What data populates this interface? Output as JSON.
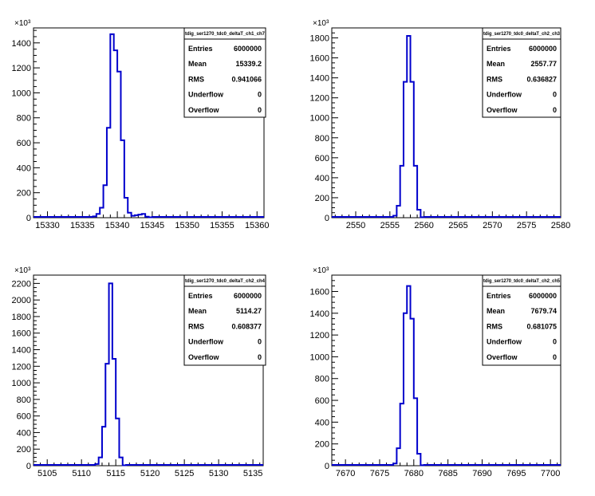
{
  "colors": {
    "histogram": "#0000cc",
    "axis": "#000000",
    "background": "#ffffff"
  },
  "chart_data": [
    {
      "type": "bar",
      "histogram_style": "step",
      "title": "tdig_ser1270_tdc0_deltaT_ch1_ch7",
      "xlim": [
        15328,
        15361
      ],
      "ylim": [
        0,
        1520
      ],
      "y_exponent_label": "×10³",
      "x_ticks": [
        15330,
        15335,
        15340,
        15345,
        15350,
        15355,
        15360
      ],
      "y_ticks": [
        0,
        200,
        400,
        600,
        800,
        1000,
        1200,
        1400
      ],
      "bin_width": 0.5,
      "bins_x": [
        15336.5,
        15337,
        15337.5,
        15338,
        15338.5,
        15339,
        15339.5,
        15340,
        15340.5,
        15341,
        15341.5,
        15342,
        15342.5,
        15343,
        15343.5,
        15344,
        15344.5
      ],
      "bins_y": [
        10,
        30,
        80,
        260,
        720,
        1470,
        1340,
        1170,
        620,
        160,
        40,
        15,
        20,
        25,
        30,
        8,
        3
      ],
      "stats": [
        {
          "label": "Entries",
          "value": "6000000"
        },
        {
          "label": "Mean",
          "value": "15339.2"
        },
        {
          "label": "RMS",
          "value": "0.941066"
        },
        {
          "label": "Underflow",
          "value": "0"
        },
        {
          "label": "Overflow",
          "value": "0"
        }
      ]
    },
    {
      "type": "bar",
      "histogram_style": "step",
      "title": "tdig_ser1270_tdc0_deltaT_ch2_ch3",
      "xlim": [
        2546.5,
        2580
      ],
      "ylim": [
        0,
        1900
      ],
      "y_exponent_label": "×10³",
      "x_ticks": [
        2550,
        2555,
        2560,
        2565,
        2570,
        2575,
        2580
      ],
      "y_ticks": [
        0,
        200,
        400,
        600,
        800,
        1000,
        1200,
        1400,
        1600,
        1800
      ],
      "bin_width": 0.5,
      "bins_x": [
        2555.5,
        2556,
        2556.5,
        2557,
        2557.5,
        2558,
        2558.5,
        2559,
        2559.5
      ],
      "bins_y": [
        20,
        120,
        520,
        1360,
        1820,
        1360,
        520,
        80,
        5
      ],
      "stats": [
        {
          "label": "Entries",
          "value": "6000000"
        },
        {
          "label": "Mean",
          "value": "2557.77"
        },
        {
          "label": "RMS",
          "value": "0.636827"
        },
        {
          "label": "Underflow",
          "value": "0"
        },
        {
          "label": "Overflow",
          "value": "0"
        }
      ]
    },
    {
      "type": "bar",
      "histogram_style": "step",
      "title": "tdig_ser1270_tdc0_deltaT_ch2_ch4",
      "xlim": [
        5103,
        5136.5
      ],
      "ylim": [
        0,
        2300
      ],
      "y_exponent_label": "×10³",
      "x_ticks": [
        5105,
        5110,
        5115,
        5120,
        5125,
        5130,
        5135
      ],
      "y_ticks": [
        0,
        200,
        400,
        600,
        800,
        1000,
        1200,
        1400,
        1600,
        1800,
        2000,
        2200
      ],
      "bin_width": 0.5,
      "bins_x": [
        5112,
        5112.5,
        5113,
        5113.5,
        5114,
        5114.5,
        5115,
        5115.5,
        5116
      ],
      "bins_y": [
        20,
        100,
        470,
        1230,
        2200,
        1290,
        570,
        100,
        5
      ],
      "stats": [
        {
          "label": "Entries",
          "value": "6000000"
        },
        {
          "label": "Mean",
          "value": "5114.27"
        },
        {
          "label": "RMS",
          "value": "0.608377"
        },
        {
          "label": "Underflow",
          "value": "0"
        },
        {
          "label": "Overflow",
          "value": "0"
        }
      ]
    },
    {
      "type": "bar",
      "histogram_style": "step",
      "title": "tdig_ser1270_tdc0_deltaT_ch2_ch5",
      "xlim": [
        7668,
        7701.5
      ],
      "ylim": [
        0,
        1750
      ],
      "y_exponent_label": "×10³",
      "x_ticks": [
        7670,
        7675,
        7680,
        7685,
        7690,
        7695,
        7700
      ],
      "y_ticks": [
        0,
        200,
        400,
        600,
        800,
        1000,
        1200,
        1400,
        1600
      ],
      "bin_width": 0.5,
      "bins_x": [
        7677,
        7677.5,
        7678,
        7678.5,
        7679,
        7679.5,
        7680,
        7680.5,
        7681
      ],
      "bins_y": [
        20,
        160,
        570,
        1400,
        1650,
        1350,
        620,
        110,
        5
      ],
      "stats": [
        {
          "label": "Entries",
          "value": "6000000"
        },
        {
          "label": "Mean",
          "value": "7679.74"
        },
        {
          "label": "RMS",
          "value": "0.681075"
        },
        {
          "label": "Underflow",
          "value": "0"
        },
        {
          "label": "Overflow",
          "value": "0"
        }
      ]
    }
  ]
}
